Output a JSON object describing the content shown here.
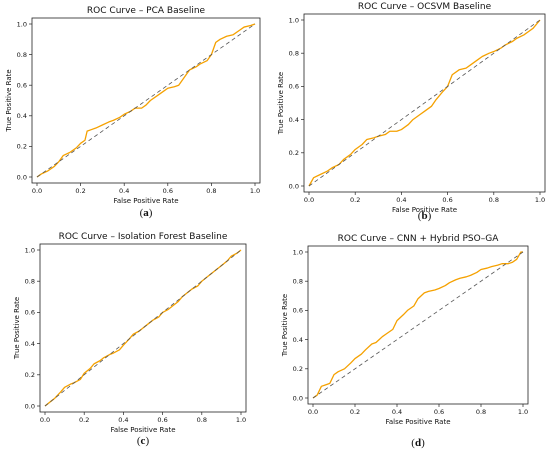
{
  "chart_data": [
    {
      "type": "line",
      "title": "ROC Curve – PCA Baseline",
      "xlabel": "False Positive Rate",
      "ylabel": "True Positive Rate",
      "caption_letter": "a",
      "xlim": [
        0,
        1
      ],
      "ylim": [
        0,
        1
      ],
      "xticks": [
        "0.0",
        "0.2",
        "0.4",
        "0.6",
        "0.8",
        "1.0"
      ],
      "yticks": [
        "0.0",
        "0.2",
        "0.4",
        "0.6",
        "0.8",
        "1.0"
      ],
      "grid": false,
      "series": [
        {
          "color": "#f5a100",
          "style": "solid",
          "x": [
            0,
            0.02,
            0.05,
            0.08,
            0.1,
            0.12,
            0.15,
            0.18,
            0.2,
            0.22,
            0.23,
            0.25,
            0.27,
            0.3,
            0.33,
            0.35,
            0.38,
            0.4,
            0.43,
            0.45,
            0.48,
            0.5,
            0.52,
            0.55,
            0.58,
            0.6,
            0.63,
            0.65,
            0.68,
            0.7,
            0.73,
            0.75,
            0.78,
            0.8,
            0.82,
            0.84,
            0.87,
            0.9,
            0.93,
            0.95,
            0.98,
            1.0
          ],
          "y": [
            0,
            0.02,
            0.04,
            0.07,
            0.1,
            0.14,
            0.16,
            0.19,
            0.22,
            0.24,
            0.3,
            0.31,
            0.32,
            0.34,
            0.36,
            0.37,
            0.39,
            0.41,
            0.43,
            0.45,
            0.45,
            0.47,
            0.5,
            0.53,
            0.56,
            0.58,
            0.59,
            0.6,
            0.66,
            0.7,
            0.72,
            0.74,
            0.76,
            0.8,
            0.88,
            0.9,
            0.92,
            0.93,
            0.96,
            0.98,
            0.99,
            1.0
          ]
        },
        {
          "color": "#555555",
          "style": "dashed",
          "x": [
            0,
            1
          ],
          "y": [
            0,
            1
          ]
        }
      ]
    },
    {
      "type": "line",
      "title": "ROC Curve – OCSVM Baseline",
      "xlabel": "False Positive Rate",
      "ylabel": "True Positive Rate",
      "caption_letter": "b",
      "xlim": [
        0,
        1
      ],
      "ylim": [
        0,
        1
      ],
      "xticks": [
        "0.0",
        "0.2",
        "0.4",
        "0.6",
        "0.8",
        "1.0"
      ],
      "yticks": [
        "0.0",
        "0.2",
        "0.4",
        "0.6",
        "0.8",
        "1.0"
      ],
      "grid": false,
      "series": [
        {
          "color": "#f5a100",
          "style": "solid",
          "x": [
            0,
            0.02,
            0.05,
            0.08,
            0.1,
            0.13,
            0.15,
            0.18,
            0.2,
            0.23,
            0.25,
            0.28,
            0.3,
            0.33,
            0.35,
            0.38,
            0.4,
            0.43,
            0.45,
            0.48,
            0.5,
            0.53,
            0.55,
            0.58,
            0.6,
            0.62,
            0.65,
            0.68,
            0.7,
            0.73,
            0.75,
            0.78,
            0.8,
            0.83,
            0.85,
            0.88,
            0.9,
            0.93,
            0.95,
            0.97,
            1.0
          ],
          "y": [
            0,
            0.05,
            0.07,
            0.09,
            0.11,
            0.13,
            0.16,
            0.19,
            0.22,
            0.25,
            0.28,
            0.29,
            0.3,
            0.31,
            0.33,
            0.33,
            0.34,
            0.37,
            0.4,
            0.43,
            0.45,
            0.48,
            0.52,
            0.57,
            0.6,
            0.67,
            0.7,
            0.71,
            0.73,
            0.76,
            0.78,
            0.8,
            0.81,
            0.83,
            0.85,
            0.87,
            0.89,
            0.91,
            0.93,
            0.95,
            1.0
          ]
        },
        {
          "color": "#555555",
          "style": "dashed",
          "x": [
            0,
            1
          ],
          "y": [
            0,
            1
          ]
        }
      ]
    },
    {
      "type": "line",
      "title": "ROC Curve – Isolation Forest Baseline",
      "xlabel": "False Positive Rate",
      "ylabel": "True Positive Rate",
      "caption_letter": "c",
      "xlim": [
        0,
        1
      ],
      "ylim": [
        0,
        1
      ],
      "xticks": [
        "0.0",
        "0.2",
        "0.4",
        "0.6",
        "0.8",
        "1.0"
      ],
      "yticks": [
        "0.0",
        "0.2",
        "0.4",
        "0.6",
        "0.8",
        "1.0"
      ],
      "grid": false,
      "series": [
        {
          "color": "#f5a100",
          "style": "solid",
          "x": [
            0,
            0.03,
            0.05,
            0.08,
            0.1,
            0.13,
            0.15,
            0.18,
            0.2,
            0.23,
            0.25,
            0.28,
            0.3,
            0.33,
            0.35,
            0.38,
            0.4,
            0.43,
            0.45,
            0.48,
            0.5,
            0.53,
            0.55,
            0.58,
            0.6,
            0.63,
            0.65,
            0.68,
            0.7,
            0.73,
            0.75,
            0.78,
            0.8,
            0.83,
            0.85,
            0.88,
            0.9,
            0.93,
            0.95,
            0.98,
            1.0
          ],
          "y": [
            0,
            0.03,
            0.05,
            0.09,
            0.12,
            0.14,
            0.15,
            0.17,
            0.21,
            0.24,
            0.27,
            0.29,
            0.31,
            0.33,
            0.34,
            0.36,
            0.39,
            0.43,
            0.46,
            0.48,
            0.5,
            0.53,
            0.55,
            0.57,
            0.6,
            0.62,
            0.64,
            0.67,
            0.7,
            0.73,
            0.75,
            0.77,
            0.8,
            0.83,
            0.85,
            0.88,
            0.9,
            0.93,
            0.96,
            0.98,
            1.0
          ]
        },
        {
          "color": "#555555",
          "style": "dashed",
          "x": [
            0,
            1
          ],
          "y": [
            0,
            1
          ]
        }
      ]
    },
    {
      "type": "line",
      "title": "ROC Curve – CNN + Hybrid PSO–GA",
      "xlabel": "False Positive Rate",
      "ylabel": "True Positive Rate",
      "caption_letter": "d",
      "xlim": [
        0,
        1
      ],
      "ylim": [
        0,
        1
      ],
      "xticks": [
        "0.0",
        "0.2",
        "0.4",
        "0.6",
        "0.8",
        "1.0"
      ],
      "yticks": [
        "0.0",
        "0.2",
        "0.4",
        "0.6",
        "0.8",
        "1.0"
      ],
      "grid": false,
      "series": [
        {
          "color": "#f5a100",
          "style": "solid",
          "x": [
            0,
            0.02,
            0.04,
            0.06,
            0.08,
            0.1,
            0.12,
            0.15,
            0.18,
            0.2,
            0.23,
            0.25,
            0.28,
            0.3,
            0.33,
            0.35,
            0.38,
            0.4,
            0.43,
            0.45,
            0.48,
            0.5,
            0.53,
            0.55,
            0.58,
            0.6,
            0.63,
            0.65,
            0.68,
            0.7,
            0.73,
            0.75,
            0.78,
            0.8,
            0.83,
            0.85,
            0.88,
            0.9,
            0.93,
            0.95,
            0.97,
            0.99,
            1.0
          ],
          "y": [
            0,
            0.02,
            0.08,
            0.09,
            0.1,
            0.16,
            0.18,
            0.2,
            0.24,
            0.27,
            0.3,
            0.33,
            0.37,
            0.38,
            0.42,
            0.44,
            0.47,
            0.53,
            0.57,
            0.6,
            0.63,
            0.68,
            0.72,
            0.73,
            0.74,
            0.75,
            0.77,
            0.79,
            0.81,
            0.82,
            0.83,
            0.84,
            0.86,
            0.88,
            0.89,
            0.9,
            0.91,
            0.92,
            0.92,
            0.93,
            0.95,
            1.0,
            1.0
          ]
        },
        {
          "color": "#555555",
          "style": "dashed",
          "x": [
            0,
            1
          ],
          "y": [
            0,
            1
          ]
        }
      ]
    }
  ]
}
